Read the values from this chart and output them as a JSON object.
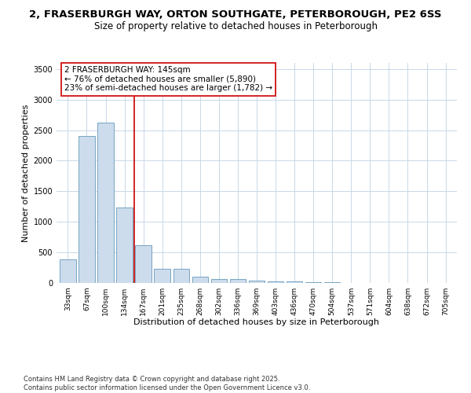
{
  "title_line1": "2, FRASERBURGH WAY, ORTON SOUTHGATE, PETERBOROUGH, PE2 6SS",
  "title_line2": "Size of property relative to detached houses in Peterborough",
  "xlabel": "Distribution of detached houses by size in Peterborough",
  "ylabel": "Number of detached properties",
  "bar_color": "#ccdcec",
  "bar_edge_color": "#6699bb",
  "annotation_line_color": "#cc0000",
  "annotation_text": "2 FRASERBURGH WAY: 145sqm\n← 76% of detached houses are smaller (5,890)\n23% of semi-detached houses are larger (1,782) →",
  "categories": [
    "33sqm",
    "67sqm",
    "100sqm",
    "134sqm",
    "167sqm",
    "201sqm",
    "235sqm",
    "268sqm",
    "302sqm",
    "336sqm",
    "369sqm",
    "403sqm",
    "436sqm",
    "470sqm",
    "504sqm",
    "537sqm",
    "571sqm",
    "604sqm",
    "638sqm",
    "672sqm",
    "705sqm"
  ],
  "values": [
    390,
    2400,
    2620,
    1230,
    620,
    230,
    230,
    100,
    65,
    65,
    40,
    30,
    20,
    15,
    8,
    5,
    3,
    2,
    1,
    1,
    1
  ],
  "red_line_x": 3.5,
  "ylim": [
    0,
    3600
  ],
  "yticks": [
    0,
    500,
    1000,
    1500,
    2000,
    2500,
    3000,
    3500
  ],
  "background_color": "#ffffff",
  "grid_color": "#c8d8e8",
  "footer_text": "Contains HM Land Registry data © Crown copyright and database right 2025.\nContains public sector information licensed under the Open Government Licence v3.0."
}
